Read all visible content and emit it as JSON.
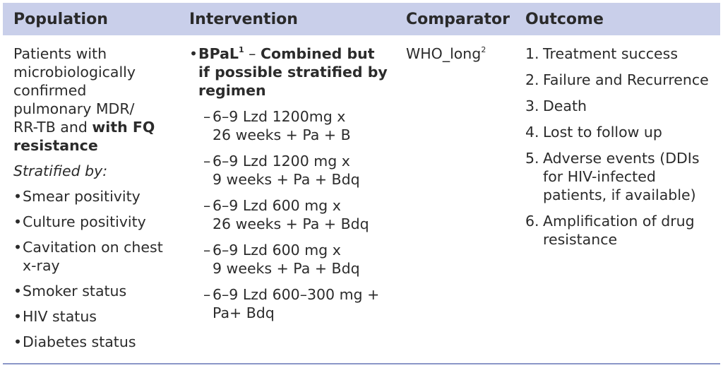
{
  "headers": {
    "population": "Population",
    "intervention": "Intervention",
    "comparator": "Comparator",
    "outcome": "Outcome"
  },
  "population": {
    "lines": [
      "Patients with",
      "microbiologically",
      "confirmed",
      "pulmonary MDR/"
    ],
    "line5_text": "RR-TB and ",
    "line5_bold": "with FQ",
    "line6_bold": "resistance",
    "stratified_label": "Stratified by:",
    "bullet_char": "•",
    "bullets": [
      [
        "Smear positivity"
      ],
      [
        "Culture positivity"
      ],
      [
        "Cavitation on chest",
        "x-ray"
      ],
      [
        "Smoker status"
      ],
      [
        "HIV status"
      ],
      [
        "Diabetes status"
      ]
    ]
  },
  "intervention": {
    "bullet_char": "•",
    "main_name": "BPaL",
    "main_sup": "1",
    "main_dash": " – ",
    "main_line1_bold": "Combined but",
    "main_line2_bold": "if possible stratified by",
    "main_line3_bold": "regimen",
    "dash_char": "–",
    "regimens": [
      [
        "6–9 Lzd 1200mg x",
        "26 weeks + Pa + B"
      ],
      [
        "6–9 Lzd 1200 mg x",
        "9 weeks + Pa + Bdq"
      ],
      [
        "6–9 Lzd 600 mg x",
        "26 weeks + Pa + Bdq"
      ],
      [
        "6–9 Lzd 600 mg x",
        "9 weeks + Pa + Bdq"
      ],
      [
        "6–9 Lzd 600–300 mg +",
        "Pa+ Bdq"
      ]
    ]
  },
  "comparator": {
    "text": "WHO_long",
    "sup": "2"
  },
  "outcomes": [
    {
      "num": "1.",
      "lines": [
        "Treatment success"
      ]
    },
    {
      "num": "2.",
      "lines": [
        "Failure and Recurrence"
      ]
    },
    {
      "num": "3.",
      "lines": [
        "Death"
      ]
    },
    {
      "num": "4.",
      "lines": [
        "Lost to follow up"
      ]
    },
    {
      "num": "5.",
      "lines": [
        "Adverse events (DDIs",
        "for HIV-infected",
        "patients, if available)"
      ]
    },
    {
      "num": "6.",
      "lines": [
        "Amplification of drug",
        "resistance"
      ]
    }
  ],
  "colors": {
    "header_bg": "#c9cfea",
    "rule": "#8b96c8",
    "text": "#2b2b2b"
  }
}
